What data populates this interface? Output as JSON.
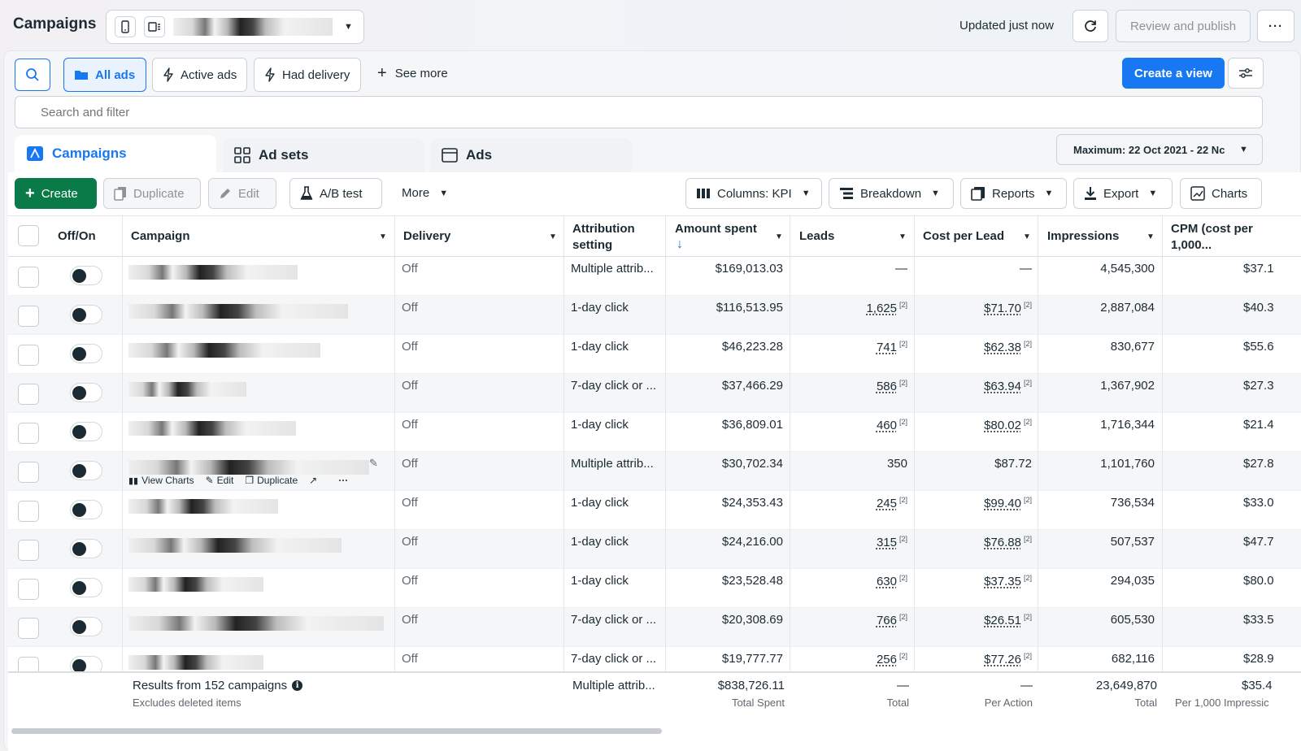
{
  "header": {
    "title": "Campaigns",
    "updated": "Updated just now",
    "review_publish": "Review and publish"
  },
  "views": {
    "all_ads": "All ads",
    "active_ads": "Active ads",
    "had_delivery": "Had delivery",
    "see_more": "See more",
    "create_view": "Create a view"
  },
  "search": {
    "placeholder": "Search and filter"
  },
  "tabs": {
    "campaigns": "Campaigns",
    "ad_sets": "Ad sets",
    "ads": "Ads"
  },
  "date_range": "Maximum: 22 Oct 2021 - 22 Nc",
  "toolbar": {
    "create": "Create",
    "duplicate": "Duplicate",
    "edit": "Edit",
    "ab_test": "A/B test",
    "more": "More",
    "columns": "Columns: KPI",
    "breakdown": "Breakdown",
    "reports": "Reports",
    "export": "Export",
    "charts": "Charts"
  },
  "columns": {
    "off_on": "Off/On",
    "campaign": "Campaign",
    "delivery": "Delivery",
    "attribution_1": "Attribution",
    "attribution_2": "setting",
    "amount_spent": "Amount spent",
    "leads": "Leads",
    "cost_per_lead": "Cost per Lead",
    "impressions": "Impressions",
    "cpm_1": "CPM (cost per",
    "cpm_2": "1,000..."
  },
  "row_actions": {
    "view_charts": "View Charts",
    "edit": "Edit",
    "duplicate": "Duplicate"
  },
  "rows": [
    {
      "delivery": "Off",
      "attribution": "Multiple attrib...",
      "spent": "$169,013.03",
      "leads": "—",
      "cpl": "—",
      "impressions": "4,545,300",
      "cpm": "$37.1"
    },
    {
      "delivery": "Off",
      "attribution": "1-day click",
      "spent": "$116,513.95",
      "leads": "1,625",
      "cpl": "$71.70",
      "impressions": "2,887,084",
      "cpm": "$40.3"
    },
    {
      "delivery": "Off",
      "attribution": "1-day click",
      "spent": "$46,223.28",
      "leads": "741",
      "cpl": "$62.38",
      "impressions": "830,677",
      "cpm": "$55.6"
    },
    {
      "delivery": "Off",
      "attribution": "7-day click or ...",
      "spent": "$37,466.29",
      "leads": "586",
      "cpl": "$63.94",
      "impressions": "1,367,902",
      "cpm": "$27.3"
    },
    {
      "delivery": "Off",
      "attribution": "1-day click",
      "spent": "$36,809.01",
      "leads": "460",
      "cpl": "$80.02",
      "impressions": "1,716,344",
      "cpm": "$21.4"
    },
    {
      "delivery": "Off",
      "attribution": "Multiple attrib...",
      "spent": "$30,702.34",
      "leads": "350",
      "cpl": "$87.72",
      "impressions": "1,101,760",
      "cpm": "$27.8"
    },
    {
      "delivery": "Off",
      "attribution": "1-day click",
      "spent": "$24,353.43",
      "leads": "245",
      "cpl": "$99.40",
      "impressions": "736,534",
      "cpm": "$33.0"
    },
    {
      "delivery": "Off",
      "attribution": "1-day click",
      "spent": "$24,216.00",
      "leads": "315",
      "cpl": "$76.88",
      "impressions": "507,537",
      "cpm": "$47.7"
    },
    {
      "delivery": "Off",
      "attribution": "1-day click",
      "spent": "$23,528.48",
      "leads": "630",
      "cpl": "$37.35",
      "impressions": "294,035",
      "cpm": "$80.0"
    },
    {
      "delivery": "Off",
      "attribution": "7-day click or ...",
      "spent": "$20,308.69",
      "leads": "766",
      "cpl": "$26.51",
      "impressions": "605,530",
      "cpm": "$33.5"
    },
    {
      "delivery": "Off",
      "attribution": "7-day click or ...",
      "spent": "$19,777.77",
      "leads": "256",
      "cpl": "$77.26",
      "impressions": "682,116",
      "cpm": "$28.9"
    }
  ],
  "footnote_mark": "[2]",
  "summary": {
    "results": "Results from 152 campaigns",
    "excludes": "Excludes deleted items",
    "attribution": "Multiple attrib...",
    "spent": "$838,726.11",
    "spent_label": "Total Spent",
    "leads": "—",
    "leads_label": "Total",
    "cpl": "—",
    "cpl_label": "Per Action",
    "impressions": "23,649,870",
    "impressions_label": "Total",
    "cpm": "$35.4",
    "cpm_label": "Per 1,000 Impressic"
  },
  "colors": {
    "primary": "#1877f2",
    "create_green": "#0a7a48",
    "text": "#1c2b33"
  }
}
